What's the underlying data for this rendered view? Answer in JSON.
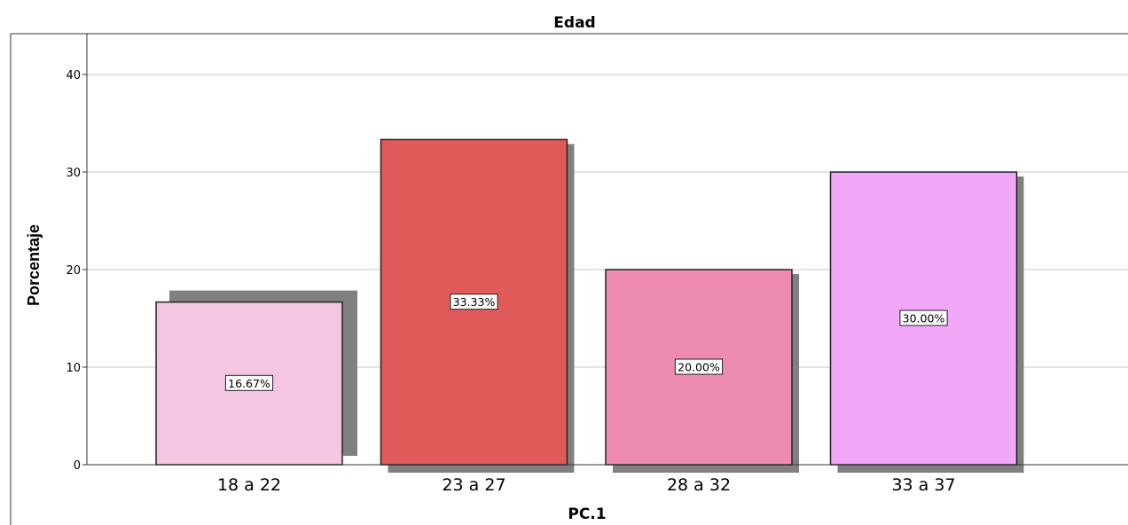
{
  "chart_data": {
    "type": "bar",
    "title": "Edad",
    "xlabel": "PC.1",
    "ylabel": "Porcentaje",
    "categories": [
      "18 a 22",
      "23 a 27",
      "28 a 32",
      "33 a 37"
    ],
    "values": [
      16.67,
      33.33,
      20.0,
      30.0
    ],
    "data_labels": [
      "16.67%",
      "33.33%",
      "20.00%",
      "30.00%"
    ],
    "colors": [
      "#f5c6e2",
      "#e05a5a",
      "#ee8bb0",
      "#f2a6f8"
    ],
    "shadow_color": "#808080",
    "ylim": [
      0,
      44
    ],
    "yticks": [
      0,
      10,
      20,
      30,
      40
    ],
    "grid": true,
    "legend": "none"
  }
}
